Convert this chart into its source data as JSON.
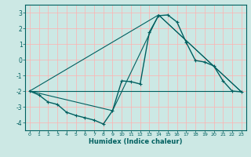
{
  "xlabel": "Humidex (Indice chaleur)",
  "background_color": "#cce8e4",
  "grid_color": "#ffb0b0",
  "line_color": "#006060",
  "xlim": [
    -0.5,
    23.5
  ],
  "ylim": [
    -4.5,
    3.5
  ],
  "yticks": [
    -4,
    -3,
    -2,
    -1,
    0,
    1,
    2,
    3
  ],
  "xticks": [
    0,
    1,
    2,
    3,
    4,
    5,
    6,
    7,
    8,
    9,
    10,
    11,
    12,
    13,
    14,
    15,
    16,
    17,
    18,
    19,
    20,
    21,
    22,
    23
  ],
  "main_x": [
    0,
    1,
    2,
    3,
    4,
    5,
    6,
    7,
    8,
    9,
    10,
    11,
    12,
    13,
    14,
    15,
    16,
    17,
    18,
    19,
    20,
    21,
    22,
    23
  ],
  "main_y": [
    -2.0,
    -2.25,
    -2.7,
    -2.85,
    -3.35,
    -3.55,
    -3.7,
    -3.85,
    -4.1,
    -3.25,
    -1.35,
    -1.4,
    -1.55,
    1.75,
    2.8,
    2.85,
    2.4,
    1.1,
    -0.05,
    -0.15,
    -0.4,
    -1.35,
    -2.0,
    -2.05
  ],
  "line2_x": [
    0,
    23
  ],
  "line2_y": [
    -2.0,
    -2.0
  ],
  "line3_x": [
    0,
    14,
    23
  ],
  "line3_y": [
    -2.0,
    2.85,
    -2.05
  ],
  "line4_x": [
    0,
    9,
    14,
    23
  ],
  "line4_y": [
    -2.0,
    -3.25,
    2.85,
    -2.05
  ]
}
